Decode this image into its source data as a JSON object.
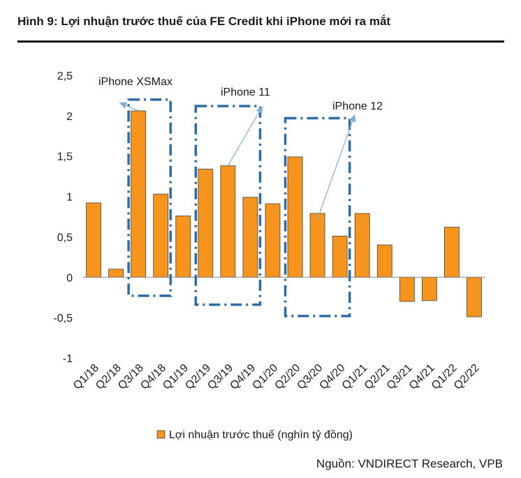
{
  "header": {
    "title": "Hình 9: Lợi nhuận trước thuế của FE Credit khi iPhone mới ra mắt"
  },
  "footer": {
    "source": "Nguồn: VNDIRECT Research, VPB"
  },
  "colors": {
    "bar": "#F7941D",
    "bar_stroke": "#404040",
    "box": "#2E6CA4",
    "arrow": "#7FAEDC",
    "axis": "#888888"
  },
  "chart_data": {
    "type": "bar",
    "categories": [
      "Q1/18",
      "Q2/18",
      "Q3/18",
      "Q4/18",
      "Q1/19",
      "Q2/19",
      "Q3/19",
      "Q4/19",
      "Q1/20",
      "Q2/20",
      "Q3/20",
      "Q4/20",
      "Q1/21",
      "Q2/21",
      "Q3/21",
      "Q4/21",
      "Q1/22",
      "Q2/22"
    ],
    "series": [
      {
        "name": "Lợi nhuận trước thuế (nghìn tỷ đồng)",
        "values": [
          0.92,
          0.1,
          2.06,
          1.03,
          0.76,
          1.34,
          1.38,
          0.99,
          0.91,
          1.49,
          0.79,
          0.51,
          0.79,
          0.4,
          -0.3,
          -0.29,
          0.62,
          -0.49
        ]
      }
    ],
    "ylim": [
      -1,
      2.5
    ],
    "yticks": [
      "2,5",
      "2",
      "1,5",
      "1",
      "0,5",
      "0",
      "-0,5",
      "-1"
    ],
    "ytick_values": [
      2.5,
      2,
      1.5,
      1,
      0.5,
      0,
      -0.5,
      -1
    ],
    "legend_position": "bottom",
    "grid": false,
    "annotations": [
      {
        "label": "iPhone XSMax",
        "start": "Q3/18",
        "end": "Q4/18",
        "box_top": 2.2,
        "box_bottom": -0.23,
        "arrow_from": 2.06
      },
      {
        "label": "iPhone 11",
        "start": "Q2/19",
        "end": "Q4/19",
        "box_top": 2.12,
        "box_bottom": -0.34,
        "arrow_from": 1.38
      },
      {
        "label": "iPhone 12",
        "start": "Q2/20",
        "end": "Q4/20",
        "box_top": 1.97,
        "box_bottom": -0.48,
        "arrow_from": 0.79
      }
    ]
  }
}
